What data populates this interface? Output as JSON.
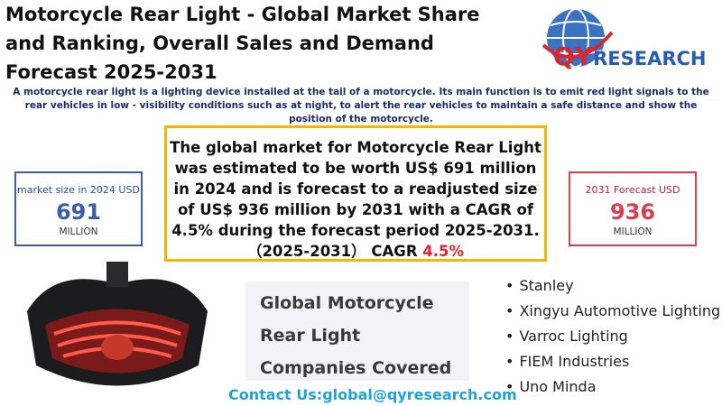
{
  "header": {
    "title": "Motorcycle Rear Light - Global Market Share and Ranking, Overall Sales and Demand Forecast 2025-2031",
    "logo": {
      "prefix": "QY",
      "suffix": "RESEARCH"
    },
    "description": "A motorcycle rear light is a lighting device installed at the tail of a motorcycle. Its main function is to emit red light signals to the rear vehicles in low - visibility conditions such as at night, to alert the rear vehicles to maintain a safe distance and show the position of the motorcycle."
  },
  "summary": {
    "text": "The global market for Motorcycle Rear Light was estimated to be worth US$ 691 million in 2024 and is forecast to a readjusted size of US$ 936 million by 2031 with a CAGR of 4.5% during the forecast period 2025-2031.",
    "cagr_label": "（2025-2031） CAGR",
    "cagr_value": "4.5%"
  },
  "market_2024": {
    "label": "market size in 2024 USD",
    "value": 691,
    "unit": "MILLION"
  },
  "forecast_2031": {
    "label": "2031 Forecast  USD",
    "value": 936,
    "unit": "MILLION"
  },
  "companies": {
    "heading": "Global Motorcycle Rear Light Companies Covered",
    "list": [
      "Stanley",
      "Xingyu Automotive Lighting",
      "Varroc Lighting",
      "FIEM Industries",
      "Uno Minda"
    ]
  },
  "contact": "Contact Us:global@qyresearch.com"
}
